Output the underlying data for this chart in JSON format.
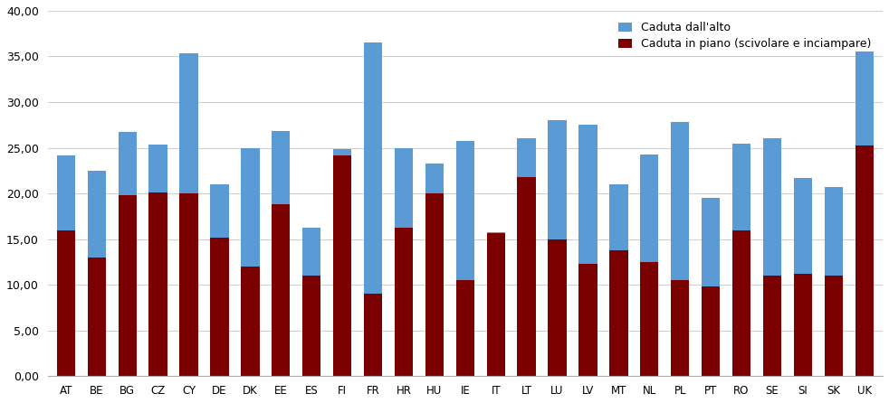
{
  "categories": [
    "AT",
    "BE",
    "BG",
    "CZ",
    "CY",
    "DE",
    "DK",
    "EE",
    "ES",
    "FI",
    "FR",
    "HR",
    "HU",
    "IE",
    "IT",
    "LT",
    "LU",
    "LV",
    "MT",
    "NL",
    "PL",
    "PT",
    "RO",
    "SE",
    "SI",
    "SK",
    "UK"
  ],
  "caduta_alto": [
    24.2,
    22.5,
    26.7,
    25.4,
    35.3,
    21.0,
    25.0,
    26.8,
    16.3,
    24.2,
    36.5,
    25.0,
    23.3,
    25.8,
    15.8,
    26.0,
    28.0,
    27.5,
    21.0,
    24.3,
    27.8,
    19.5,
    25.5,
    26.0,
    21.7,
    20.7,
    35.5
  ],
  "caduta_piano": [
    16.0,
    13.0,
    19.8,
    20.1,
    20.0,
    15.2,
    12.0,
    18.8,
    11.0,
    24.9,
    9.0,
    16.3,
    20.0,
    10.5,
    15.7,
    21.8,
    15.0,
    12.3,
    13.8,
    12.5,
    10.5,
    9.8,
    16.0,
    11.0,
    11.2,
    11.0,
    25.3
  ],
  "color_alto": "#5b9bd5",
  "color_piano": "#7b0000",
  "ylim": [
    0,
    40
  ],
  "yticks": [
    0.0,
    5.0,
    10.0,
    15.0,
    20.0,
    25.0,
    30.0,
    35.0,
    40.0
  ],
  "legend_alto": "Caduta dall'alto",
  "legend_piano": "Caduta in piano (scivolare e inciampare)",
  "bg_color": "#ffffff",
  "grid_color": "#d0d0d0"
}
